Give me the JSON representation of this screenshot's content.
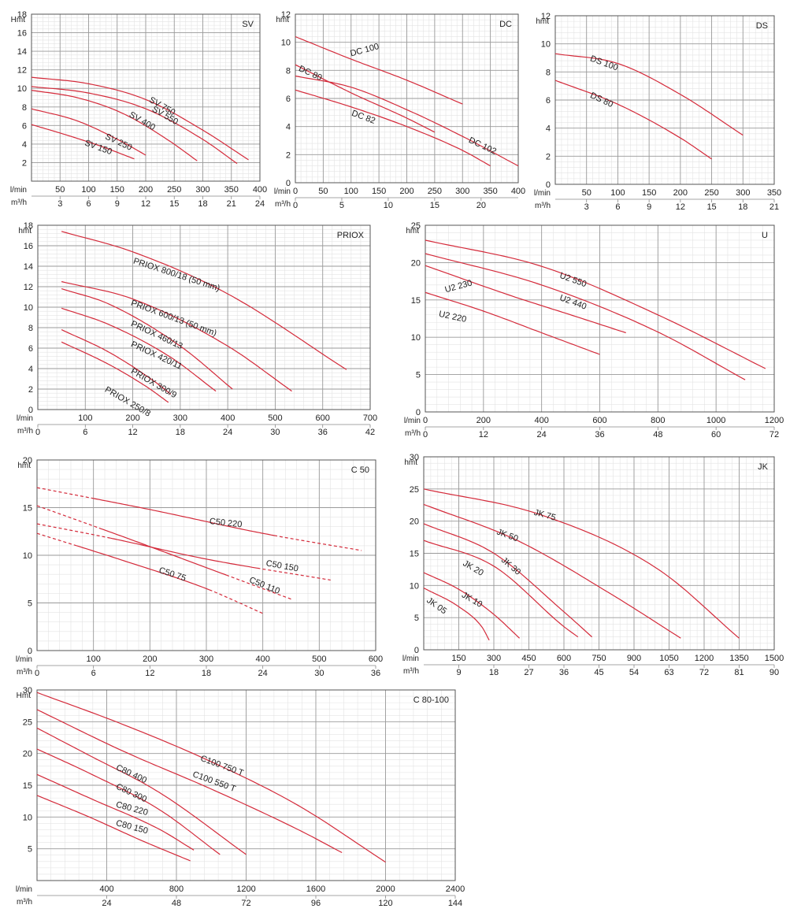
{
  "colors": {
    "curve": "#d42a3a",
    "grid_major": "#9a9a9a",
    "grid_minor": "#e3e3e3",
    "axis": "#555555"
  },
  "chart_data": [
    {
      "id": "sv",
      "type": "line",
      "title": "SV",
      "ylabel": "Hmt",
      "xlabel": "l/min",
      "x2label": "m³/h",
      "xlim": [
        0,
        400
      ],
      "ylim": [
        0,
        18
      ],
      "xticks": [
        50,
        100,
        150,
        200,
        250,
        300,
        350,
        400
      ],
      "x2ticks": [
        3,
        6,
        9,
        12,
        15,
        18,
        21,
        24
      ],
      "yticks": [
        2,
        4,
        6,
        8,
        10,
        12,
        14,
        16,
        18
      ],
      "series": [
        {
          "name": "SV 750",
          "x": [
            0,
            100,
            200,
            300,
            380
          ],
          "y": [
            11.2,
            10.5,
            8.8,
            5.5,
            2.3
          ],
          "label_at": [
            205,
            8.6
          ],
          "label_angle": 30
        },
        {
          "name": "SV 550",
          "x": [
            0,
            100,
            200,
            300,
            360
          ],
          "y": [
            10.2,
            9.5,
            7.8,
            4.5,
            1.9
          ],
          "label_at": [
            210,
            7.6
          ],
          "label_angle": 30
        },
        {
          "name": "SV 400",
          "x": [
            0,
            80,
            160,
            240,
            290
          ],
          "y": [
            9.8,
            9.0,
            7.3,
            4.4,
            2.2
          ],
          "label_at": [
            170,
            7.0
          ],
          "label_angle": 30
        },
        {
          "name": "SV 250",
          "x": [
            0,
            80,
            160,
            200
          ],
          "y": [
            7.8,
            6.5,
            4.2,
            2.8
          ],
          "label_at": [
            128,
            4.6
          ],
          "label_angle": 25
        },
        {
          "name": "SV 150",
          "x": [
            0,
            60,
            120,
            180
          ],
          "y": [
            6.1,
            5.0,
            3.8,
            2.4
          ],
          "label_at": [
            92,
            3.9
          ],
          "label_angle": 20
        }
      ]
    },
    {
      "id": "dc",
      "type": "line",
      "title": "DC",
      "ylabel": "hmt",
      "xlabel": "l/min",
      "x2label": "m³/h",
      "xlim": [
        0,
        400
      ],
      "ylim": [
        0,
        12
      ],
      "xticks": [
        0,
        50,
        100,
        150,
        200,
        250,
        300,
        350,
        400
      ],
      "x2ticks": [
        0,
        5,
        10,
        15,
        20
      ],
      "yticks": [
        0,
        2,
        4,
        6,
        8,
        10,
        12
      ],
      "series": [
        {
          "name": "DC 100",
          "x": [
            0,
            100,
            200,
            300
          ],
          "y": [
            10.4,
            8.8,
            7.3,
            5.6
          ],
          "label_at": [
            100,
            9.0
          ],
          "label_angle": -15
        },
        {
          "name": "DC 80",
          "x": [
            0,
            100,
            200,
            250
          ],
          "y": [
            8.4,
            6.4,
            4.6,
            3.6
          ],
          "label_at": [
            5,
            8.0
          ],
          "label_angle": 25
        },
        {
          "name": "DC 102",
          "x": [
            0,
            100,
            200,
            300,
            400
          ],
          "y": [
            7.6,
            6.8,
            5.2,
            3.3,
            1.2
          ],
          "label_at": [
            310,
            2.9
          ],
          "label_angle": 25
        },
        {
          "name": "DC 82",
          "x": [
            0,
            100,
            200,
            300,
            350
          ],
          "y": [
            6.6,
            5.4,
            4.0,
            2.3,
            1.2
          ],
          "label_at": [
            100,
            4.8
          ],
          "label_angle": 20
        }
      ]
    },
    {
      "id": "ds",
      "type": "line",
      "title": "DS",
      "ylabel": "hmt",
      "xlabel": "l/min",
      "x2label": "m³/h",
      "xlim": [
        0,
        350
      ],
      "ylim": [
        0,
        12
      ],
      "xticks": [
        50,
        100,
        150,
        200,
        250,
        300,
        350
      ],
      "x2ticks": [
        3,
        6,
        9,
        12,
        15,
        18,
        21
      ],
      "yticks": [
        0,
        2,
        4,
        6,
        8,
        10,
        12
      ],
      "series": [
        {
          "name": "DS 100",
          "x": [
            0,
            100,
            200,
            300
          ],
          "y": [
            9.3,
            8.6,
            6.4,
            3.5
          ],
          "label_at": [
            55,
            8.8
          ],
          "label_angle": 20
        },
        {
          "name": "DS 80",
          "x": [
            0,
            100,
            200,
            250
          ],
          "y": [
            7.4,
            5.7,
            3.3,
            1.8
          ],
          "label_at": [
            55,
            6.2
          ],
          "label_angle": 25
        }
      ]
    },
    {
      "id": "priox",
      "type": "line",
      "title": "PRIOX",
      "ylabel": "hmt",
      "xlabel": "l/min",
      "x2label": "m³/h",
      "xlim": [
        0,
        700
      ],
      "ylim": [
        0,
        18
      ],
      "xticks": [
        100,
        200,
        300,
        400,
        500,
        600,
        700
      ],
      "x2ticks": [
        0,
        6,
        12,
        18,
        24,
        30,
        36,
        42
      ],
      "yticks": [
        0,
        2,
        4,
        6,
        8,
        10,
        12,
        14,
        16,
        18
      ],
      "series": [
        {
          "name": "PRIOX 800/18 (50 mm)",
          "x": [
            50,
            200,
            400,
            650
          ],
          "y": [
            17.4,
            15.4,
            11.3,
            3.9
          ],
          "label_at": [
            200,
            14.3
          ],
          "label_angle": 18
        },
        {
          "name": "PRIOX 600/13 (50 mm)",
          "x": [
            50,
            200,
            400,
            535
          ],
          "y": [
            12.5,
            10.8,
            6.2,
            1.8
          ],
          "label_at": [
            195,
            10.2
          ],
          "label_angle": 20
        },
        {
          "name": "PRIOX 460/13",
          "x": [
            50,
            150,
            300,
            410
          ],
          "y": [
            11.8,
            10.3,
            6.2,
            2.0
          ],
          "label_at": [
            195,
            8.2
          ],
          "label_angle": 25
        },
        {
          "name": "PRIOX 420/11",
          "x": [
            50,
            150,
            280,
            375
          ],
          "y": [
            9.9,
            8.3,
            5.1,
            1.8
          ],
          "label_at": [
            195,
            6.2
          ],
          "label_angle": 25
        },
        {
          "name": "PRIOX 300/9",
          "x": [
            50,
            150,
            250,
            280
          ],
          "y": [
            7.8,
            5.6,
            2.6,
            1.5
          ],
          "label_at": [
            195,
            3.6
          ],
          "label_angle": 30
        },
        {
          "name": "PRIOX 250/8",
          "x": [
            50,
            150,
            230,
            275
          ],
          "y": [
            6.6,
            4.4,
            2.2,
            0.7
          ],
          "label_at": [
            140,
            1.8
          ],
          "label_angle": 30
        }
      ]
    },
    {
      "id": "u",
      "type": "line",
      "title": "U",
      "ylabel": "hmt",
      "xlabel": "l/min",
      "x2label": "m³/h",
      "xlim": [
        0,
        1200
      ],
      "ylim": [
        0,
        25
      ],
      "xticks": [
        0,
        200,
        400,
        600,
        800,
        1000,
        1200
      ],
      "x2ticks": [
        0,
        12,
        24,
        36,
        48,
        60,
        72
      ],
      "yticks": [
        0,
        5,
        10,
        15,
        20,
        25
      ],
      "series": [
        {
          "name": "U2 550",
          "x": [
            0,
            400,
            800,
            1170
          ],
          "y": [
            23.0,
            19.5,
            13.0,
            5.8
          ],
          "label_at": [
            460,
            18.0
          ],
          "label_angle": 20
        },
        {
          "name": "U2 440",
          "x": [
            0,
            400,
            800,
            1100
          ],
          "y": [
            21.2,
            17.0,
            10.7,
            4.3
          ],
          "label_at": [
            460,
            15.0
          ],
          "label_angle": 20
        },
        {
          "name": "U2 230",
          "x": [
            0,
            300,
            500,
            690
          ],
          "y": [
            19.6,
            15.5,
            13.0,
            10.6
          ],
          "label_at": [
            70,
            16.0
          ],
          "label_angle": -15
        },
        {
          "name": "U2 220",
          "x": [
            0,
            200,
            400,
            600
          ],
          "y": [
            16.0,
            13.5,
            10.6,
            7.7
          ],
          "label_at": [
            45,
            12.8
          ],
          "label_angle": 12
        }
      ]
    },
    {
      "id": "c50",
      "type": "line",
      "title": "C 50",
      "ylabel": "hmt",
      "xlabel": "l/min",
      "x2label": "m³/h",
      "xlim": [
        0,
        600
      ],
      "ylim": [
        0,
        20
      ],
      "xticks": [
        100,
        200,
        300,
        400,
        500,
        600
      ],
      "x2ticks": [
        0,
        6,
        12,
        18,
        24,
        30,
        36
      ],
      "yticks": [
        0,
        5,
        10,
        15,
        20
      ],
      "series": [
        {
          "name": "C50 220",
          "x": [
            0,
            200,
            400,
            575
          ],
          "y": [
            17.1,
            14.8,
            12.3,
            10.5
          ],
          "solid_from": 100,
          "solid_to": 420,
          "label_at": [
            305,
            13.3
          ],
          "label_angle": 6
        },
        {
          "name": "C50 150",
          "x": [
            0,
            130,
            300,
            520
          ],
          "y": [
            13.3,
            11.8,
            9.6,
            7.4
          ],
          "solid_from": 130,
          "solid_to": 390,
          "label_at": [
            405,
            8.9
          ],
          "label_angle": 10
        },
        {
          "name": "C50 110",
          "x": [
            0,
            150,
            300,
            450
          ],
          "y": [
            15.2,
            12.0,
            8.7,
            5.4
          ],
          "solid_from": 110,
          "solid_to": 335,
          "label_at": [
            375,
            7.2
          ],
          "label_angle": 22
        },
        {
          "name": "C50 75",
          "x": [
            0,
            150,
            300,
            400
          ],
          "y": [
            12.3,
            9.5,
            6.5,
            3.9
          ],
          "solid_from": 70,
          "solid_to": 305,
          "label_at": [
            215,
            8.2
          ],
          "label_angle": 18
        }
      ]
    },
    {
      "id": "jk",
      "type": "line",
      "title": "JK",
      "ylabel": "hmt",
      "xlabel": "l/min",
      "x2label": "m³/h",
      "xlim": [
        0,
        1500
      ],
      "ylim": [
        0,
        30
      ],
      "xticks": [
        150,
        300,
        450,
        600,
        750,
        900,
        1050,
        1200,
        1350,
        1500
      ],
      "x2ticks": [
        9,
        18,
        27,
        36,
        45,
        54,
        63,
        72,
        81,
        90
      ],
      "yticks": [
        0,
        5,
        10,
        15,
        20,
        25,
        30
      ],
      "series": [
        {
          "name": "JK 75",
          "x": [
            0,
            500,
            1000,
            1350
          ],
          "y": [
            25.0,
            21.0,
            12.6,
            1.8
          ],
          "label_at": [
            470,
            21.0
          ],
          "label_angle": 15
        },
        {
          "name": "JK 50",
          "x": [
            0,
            400,
            800,
            1100
          ],
          "y": [
            22.6,
            17.0,
            8.7,
            1.8
          ],
          "label_at": [
            310,
            18.0
          ],
          "label_angle": 20
        },
        {
          "name": "JK 30",
          "x": [
            0,
            300,
            600,
            720
          ],
          "y": [
            19.6,
            15.0,
            5.9,
            2.0
          ],
          "label_at": [
            330,
            13.8
          ],
          "label_angle": 40
        },
        {
          "name": "JK 20",
          "x": [
            0,
            300,
            600,
            660
          ],
          "y": [
            17.0,
            13.0,
            3.6,
            2.0
          ],
          "label_at": [
            165,
            13.2
          ],
          "label_angle": 30
        },
        {
          "name": "JK 10",
          "x": [
            0,
            150,
            300,
            410
          ],
          "y": [
            12.0,
            9.4,
            5.5,
            1.8
          ],
          "label_at": [
            160,
            8.3
          ],
          "label_angle": 30
        },
        {
          "name": "JK 05",
          "x": [
            0,
            150,
            250,
            280
          ],
          "y": [
            9.6,
            6.7,
            3.5,
            1.5
          ],
          "label_at": [
            10,
            7.5
          ],
          "label_angle": 35
        }
      ]
    },
    {
      "id": "c80",
      "type": "line",
      "title": "C 80-100",
      "ylabel": "Hmt",
      "xlabel": "l/min",
      "x2label": "m³/h",
      "xlim": [
        0,
        2400
      ],
      "ylim": [
        0,
        30
      ],
      "xticks": [
        400,
        800,
        1200,
        1600,
        2000,
        2400
      ],
      "x2ticks": [
        24,
        48,
        72,
        96,
        120,
        144
      ],
      "yticks": [
        5,
        10,
        15,
        20,
        25,
        30
      ],
      "series": [
        {
          "name": "C100 750 T",
          "x": [
            0,
            500,
            1000,
            1500,
            2000
          ],
          "y": [
            29.6,
            24.5,
            18.7,
            11.8,
            2.9
          ],
          "label_at": [
            935,
            18.9
          ],
          "label_angle": 20
        },
        {
          "name": "C100 550 T",
          "x": [
            0,
            500,
            1000,
            1500,
            1750
          ],
          "y": [
            26.9,
            20.3,
            14.4,
            8.0,
            4.4
          ],
          "label_at": [
            890,
            16.4
          ],
          "label_angle": 20
        },
        {
          "name": "C80 400",
          "x": [
            0,
            300,
            700,
            1200
          ],
          "y": [
            24.0,
            19.7,
            13.9,
            4.1
          ],
          "label_at": [
            450,
            17.5
          ],
          "label_angle": 25
        },
        {
          "name": "C80 300",
          "x": [
            0,
            300,
            700,
            1050
          ],
          "y": [
            20.7,
            16.9,
            11.2,
            4.1
          ],
          "label_at": [
            450,
            14.5
          ],
          "label_angle": 25
        },
        {
          "name": "C80 220",
          "x": [
            0,
            300,
            700,
            900
          ],
          "y": [
            16.7,
            13.0,
            8.1,
            4.8
          ],
          "label_at": [
            450,
            11.6
          ],
          "label_angle": 15
        },
        {
          "name": "C80 150",
          "x": [
            0,
            300,
            600,
            880
          ],
          "y": [
            13.4,
            10.0,
            6.3,
            3.1
          ],
          "label_at": [
            450,
            8.7
          ],
          "label_angle": 15
        }
      ]
    }
  ]
}
